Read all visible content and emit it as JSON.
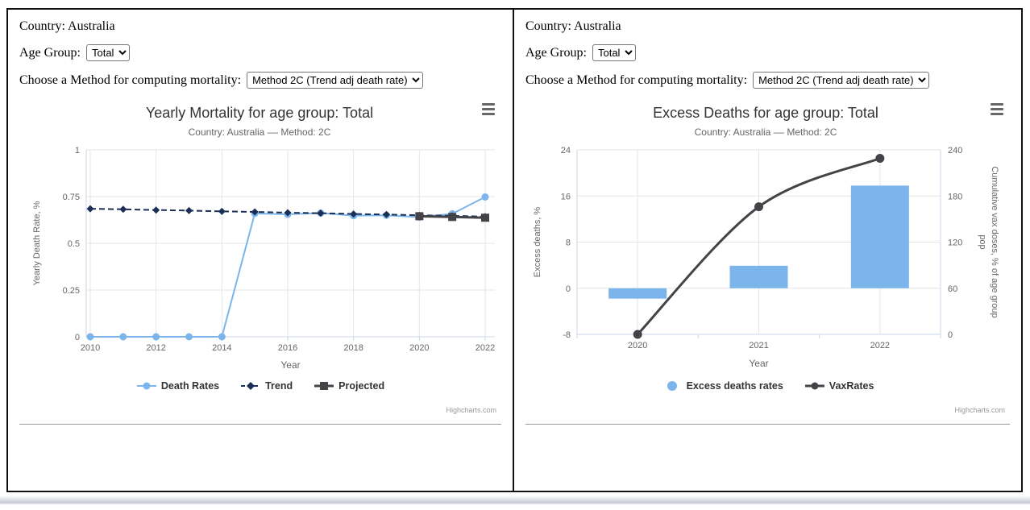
{
  "panels": [
    {
      "country": "Country: Australia",
      "age_group_label": "Age Group:",
      "age_group_value": "Total",
      "method_label": "Choose a Method for computing mortality:",
      "method_value": "Method 2C (Trend adj death rate)"
    },
    {
      "country": "Country: Australia",
      "age_group_label": "Age Group:",
      "age_group_value": "Total",
      "method_label": "Choose a Method for computing mortality:",
      "method_value": "Method 2C (Trend adj death rate)"
    }
  ],
  "chart_data": [
    {
      "type": "line",
      "title": "Yearly Mortality for age group: Total",
      "subtitle": "Country: Australia –– Method: 2C",
      "xlabel": "Year",
      "ylabel": "Yearly Death Rate, %",
      "xlim": [
        2010,
        2022
      ],
      "xticks": [
        2010,
        2012,
        2014,
        2016,
        2018,
        2020,
        2022
      ],
      "ylim": [
        0,
        1
      ],
      "yticks": [
        0,
        0.25,
        0.5,
        0.75,
        1
      ],
      "grid": true,
      "legend_position": "bottom",
      "credit": "Highcharts.com",
      "colors": {
        "grid": "#e6e6e6",
        "axis_line": "#ccd6eb",
        "tick_text": "#666666",
        "title": "#333333",
        "subtitle": "#666666"
      },
      "series": [
        {
          "name": "Death Rates",
          "color": "#7cb5ec",
          "marker": "circle",
          "dash": "solid",
          "width": 2,
          "x": [
            2010,
            2011,
            2012,
            2013,
            2014,
            2015,
            2016,
            2017,
            2018,
            2019,
            2020,
            2021,
            2022
          ],
          "values": [
            0,
            0,
            0,
            0,
            0,
            0.66,
            0.655,
            0.662,
            0.648,
            0.65,
            0.64,
            0.658,
            0.748
          ]
        },
        {
          "name": "Trend",
          "color": "#1b2f55",
          "marker": "diamond",
          "dash": "dashed",
          "width": 2,
          "x": [
            2010,
            2011,
            2012,
            2013,
            2014,
            2015,
            2016,
            2017,
            2018,
            2019,
            2020,
            2021,
            2022
          ],
          "values": [
            0.685,
            0.682,
            0.678,
            0.675,
            0.671,
            0.668,
            0.664,
            0.661,
            0.657,
            0.654,
            0.65,
            0.647,
            0.643
          ]
        },
        {
          "name": "Projected",
          "color": "#434348",
          "marker": "square",
          "dash": "solid",
          "width": 3,
          "x": [
            2020,
            2021,
            2022
          ],
          "values": [
            0.645,
            0.641,
            0.637
          ]
        }
      ]
    },
    {
      "type": "combo",
      "title": "Excess Deaths for age group: Total",
      "subtitle": "Country: Australia –– Method: 2C",
      "xlabel": "Year",
      "ylabel_left": "Excess deaths, %",
      "ylabel_right": "Cumulative vax doses, % of age group pop",
      "ylabel_right_lines": [
        "Cumulative vax doses, % of age group",
        "pop"
      ],
      "categories": [
        2020,
        2021,
        2022
      ],
      "ylim_left": [
        -8,
        24
      ],
      "yticks_left": [
        -8,
        0,
        8,
        16,
        24
      ],
      "ylim_right": [
        0,
        240
      ],
      "yticks_right": [
        0,
        60,
        120,
        180,
        240
      ],
      "grid": true,
      "legend_position": "bottom",
      "credit": "Highcharts.com",
      "colors": {
        "grid": "#e6e6e6",
        "axis_line": "#ccd6eb",
        "tick_text": "#666666",
        "title": "#333333",
        "subtitle": "#666666"
      },
      "series": [
        {
          "name": "Excess deaths rates",
          "type": "bar",
          "axis": "left",
          "color": "#7cb5ec",
          "values": [
            -1.8,
            3.9,
            17.8
          ]
        },
        {
          "name": "VaxRates",
          "type": "spline",
          "axis": "right",
          "color": "#434348",
          "width": 3,
          "marker": "circle",
          "values": [
            0,
            166,
            229
          ]
        }
      ]
    }
  ]
}
